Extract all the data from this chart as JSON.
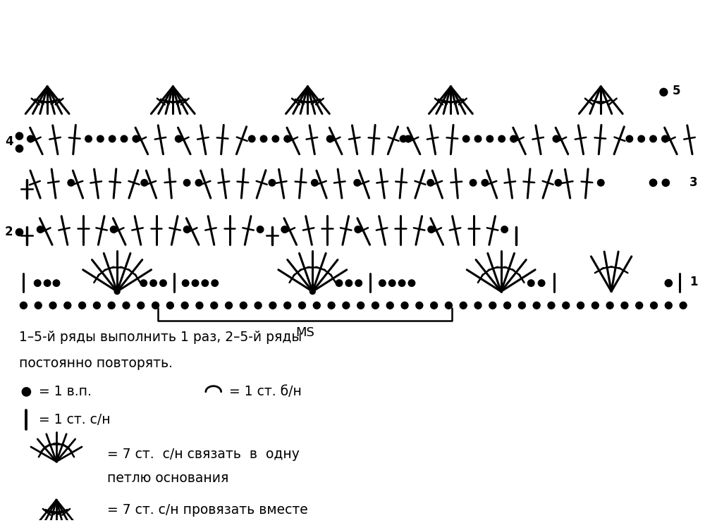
{
  "bg_color": "#ffffff",
  "text_color": "#000000",
  "legend_text1": "1–5-й ряды выполнить 1 раз, 2–5-й ряды",
  "legend_text2": "постоянно повторять.",
  "ms_label": "MS",
  "row_labels": [
    "1",
    "2",
    "3",
    "4",
    "5"
  ]
}
